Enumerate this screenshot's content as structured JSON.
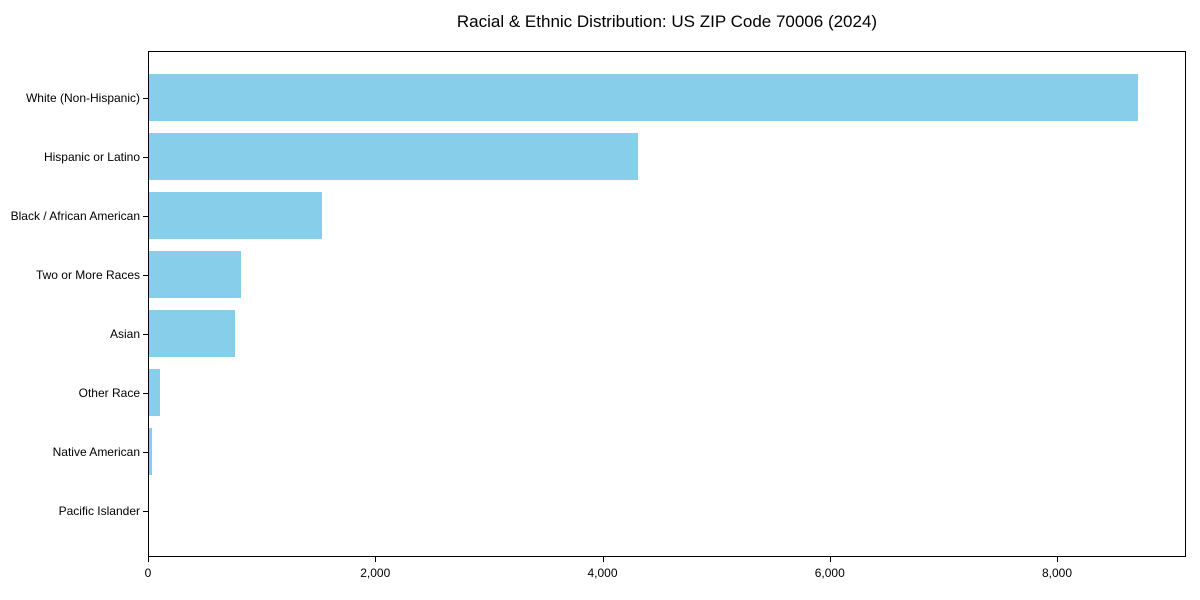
{
  "chart_data": {
    "type": "bar",
    "orientation": "horizontal",
    "title": "Racial & Ethnic Distribution: US ZIP Code 70006 (2024)",
    "categories": [
      "White (Non-Hispanic)",
      "Hispanic or Latino",
      "Black / African American",
      "Two or More Races",
      "Asian",
      "Other Race",
      "Native American",
      "Pacific Islander"
    ],
    "values": [
      8700,
      4300,
      1520,
      810,
      755,
      95,
      25,
      0
    ],
    "categories_order": "top-to-bottom",
    "xlabel": "",
    "ylabel": "",
    "xlim": [
      0,
      9135
    ],
    "x_ticks": [
      {
        "value": 0,
        "label": "0"
      },
      {
        "value": 2000,
        "label": "2,000"
      },
      {
        "value": 4000,
        "label": "4,000"
      },
      {
        "value": 6000,
        "label": "6,000"
      },
      {
        "value": 8000,
        "label": "8,000"
      }
    ],
    "grid": false,
    "legend": null,
    "bar_color": "#87CEEB",
    "spine_color": "#000000",
    "text_color": "#000000",
    "background_color": "#ffffff"
  }
}
